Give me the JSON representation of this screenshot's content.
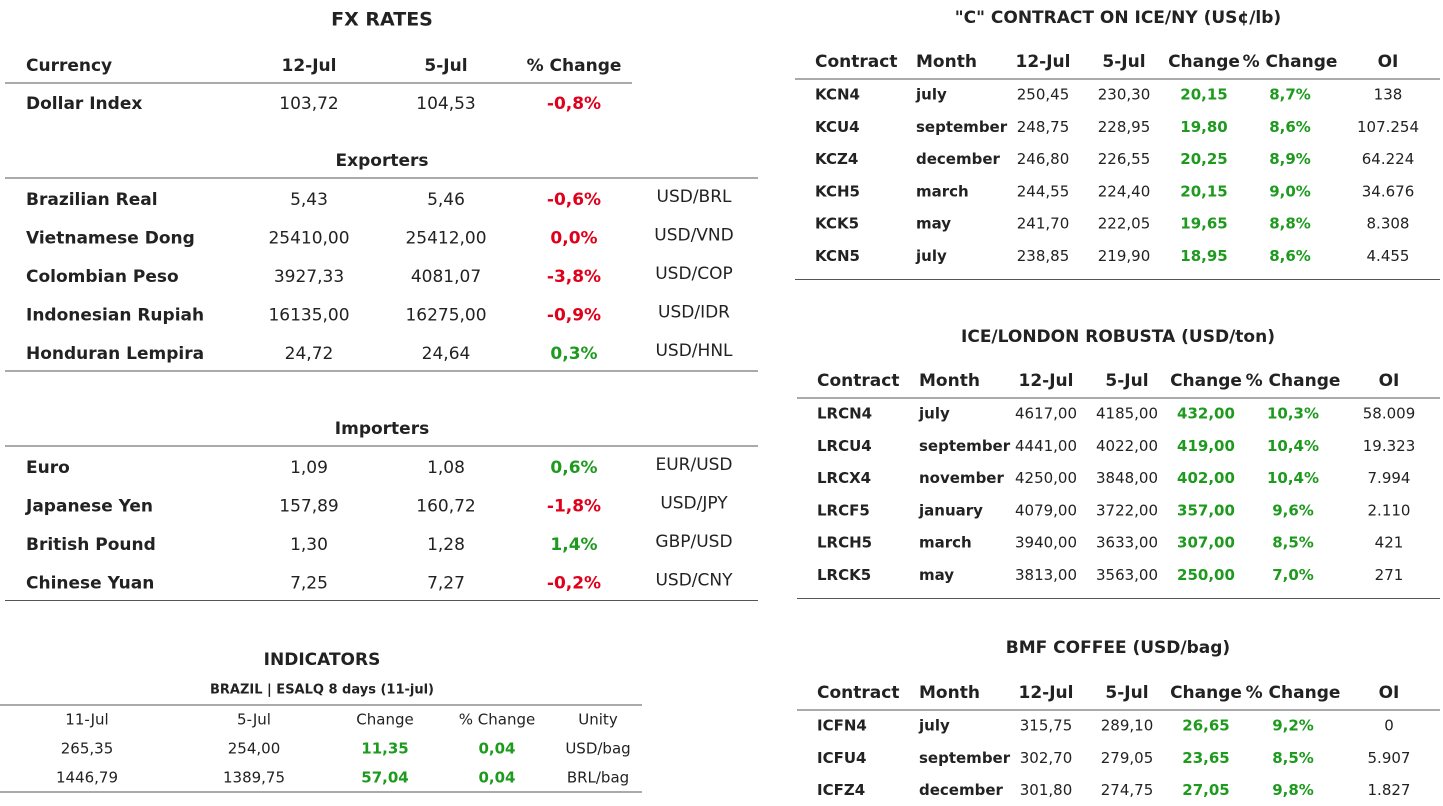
{
  "fx": {
    "title": "FX RATES",
    "header": [
      "Currency",
      "12-Jul",
      "5-Jul",
      "% Change"
    ],
    "dollar_index": [
      "Dollar Index",
      "103,72",
      "104,53",
      "-0,8%"
    ],
    "exporters": {
      "title": "Exporters",
      "rows": [
        [
          "Brazilian Real",
          "5,43",
          "5,46",
          "-0,6%",
          "USD/BRL"
        ],
        [
          "Vietnamese Dong",
          "25410,00",
          "25412,00",
          "0,0%",
          "USD/VND"
        ],
        [
          "Colombian Peso",
          "3927,33",
          "4081,07",
          "-3,8%",
          "USD/COP"
        ],
        [
          "Indonesian Rupiah",
          "16135,00",
          "16275,00",
          "-0,9%",
          "USD/IDR"
        ],
        [
          "Honduran Lempira",
          "24,72",
          "24,64",
          "0,3%",
          "USD/HNL"
        ]
      ]
    },
    "importers": {
      "title": "Importers",
      "rows": [
        [
          "Euro",
          "1,09",
          "1,08",
          "0,6%",
          "EUR/USD"
        ],
        [
          "Japanese Yen",
          "157,89",
          "160,72",
          "-1,8%",
          "USD/JPY"
        ],
        [
          "British Pound",
          "1,30",
          "1,28",
          "1,4%",
          "GBP/USD"
        ],
        [
          "Chinese Yuan",
          "7,25",
          "7,27",
          "-0,2%",
          "USD/CNY"
        ]
      ]
    }
  },
  "indicators": {
    "title": "INDICATORS",
    "subtitle": "BRAZIL | ESALQ 8 days (11-jul)",
    "header": [
      "11-Jul",
      "5-Jul",
      "Change",
      "% Change",
      "Unity"
    ],
    "rows": [
      [
        "265,35",
        "254,00",
        "11,35",
        "0,04",
        "USD/bag"
      ],
      [
        "1446,79",
        "1389,75",
        "57,04",
        "0,04",
        "BRL/bag"
      ]
    ]
  },
  "c_contract": {
    "title": "\"C\" CONTRACT ON ICE/NY (US¢/lb)",
    "header": [
      "Contract",
      "Month",
      "12-Jul",
      "5-Jul",
      "Change",
      "% Change",
      "OI"
    ],
    "rows": [
      [
        "KCN4",
        "july",
        "250,45",
        "230,30",
        "20,15",
        "8,7%",
        "138"
      ],
      [
        "KCU4",
        "september",
        "248,75",
        "228,95",
        "19,80",
        "8,6%",
        "107.254"
      ],
      [
        "KCZ4",
        "december",
        "246,80",
        "226,55",
        "20,25",
        "8,9%",
        "64.224"
      ],
      [
        "KCH5",
        "march",
        "244,55",
        "224,40",
        "20,15",
        "9,0%",
        "34.676"
      ],
      [
        "KCK5",
        "may",
        "241,70",
        "222,05",
        "19,65",
        "8,8%",
        "8.308"
      ],
      [
        "KCN5",
        "july",
        "238,85",
        "219,90",
        "18,95",
        "8,6%",
        "4.455"
      ]
    ]
  },
  "robusta": {
    "title": "ICE/LONDON ROBUSTA (USD/ton)",
    "header": [
      "Contract",
      "Month",
      "12-Jul",
      "5-Jul",
      "Change",
      "% Change",
      "OI"
    ],
    "rows": [
      [
        "LRCN4",
        "july",
        "4617,00",
        "4185,00",
        "432,00",
        "10,3%",
        "58.009"
      ],
      [
        "LRCU4",
        "september",
        "4441,00",
        "4022,00",
        "419,00",
        "10,4%",
        "19.323"
      ],
      [
        "LRCX4",
        "november",
        "4250,00",
        "3848,00",
        "402,00",
        "10,4%",
        "7.994"
      ],
      [
        "LRCF5",
        "january",
        "4079,00",
        "3722,00",
        "357,00",
        "9,6%",
        "2.110"
      ],
      [
        "LRCH5",
        "march",
        "3940,00",
        "3633,00",
        "307,00",
        "8,5%",
        "421"
      ],
      [
        "LRCK5",
        "may",
        "3813,00",
        "3563,00",
        "250,00",
        "7,0%",
        "271"
      ]
    ]
  },
  "bmf": {
    "title": "BMF COFFEE (USD/bag)",
    "header": [
      "Contract",
      "Month",
      "12-Jul",
      "5-Jul",
      "Change",
      "% Change",
      "OI"
    ],
    "rows": [
      [
        "ICFN4",
        "july",
        "315,75",
        "289,10",
        "26,65",
        "9,2%",
        "0"
      ],
      [
        "ICFU4",
        "september",
        "302,70",
        "279,05",
        "23,65",
        "8,5%",
        "5.907"
      ],
      [
        "ICFZ4",
        "december",
        "301,80",
        "274,75",
        "27,05",
        "9,8%",
        "1.827"
      ]
    ]
  }
}
